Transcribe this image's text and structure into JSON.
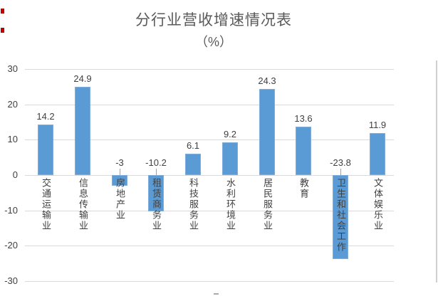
{
  "title": {
    "line1": "分行业营收增速情况表",
    "line2": "（%）"
  },
  "chart_data": {
    "type": "bar",
    "title": "分行业营收增速情况表",
    "subtitle": "（%）",
    "categories": [
      "交通运输业",
      "信息传输业",
      "房地产业",
      "租赁商务业",
      "科技服务业",
      "水利环境业",
      "居民服务业",
      "教育",
      "卫生和社会工作",
      "文体娱乐业"
    ],
    "values": [
      14.2,
      24.9,
      -3,
      -10.2,
      6.1,
      9.2,
      24.3,
      13.6,
      -23.8,
      11.9
    ],
    "value_labels": [
      "14.2",
      "24.9",
      "-3",
      "-10.2",
      "6.1",
      "9.2",
      "24.3",
      "13.6",
      "-23.8",
      "11.9"
    ],
    "ylim": [
      -30,
      30
    ],
    "yticks": [
      30,
      20,
      10,
      0,
      -10,
      -20,
      -30
    ],
    "grid": true,
    "legend": "none",
    "bar_color": "#5b9bd5",
    "bar_border_color": "#7faedc",
    "gridline_color": "#d9d9d9",
    "axis_label_color": "#404040",
    "title_color": "#595959"
  },
  "decorations": {
    "left_margin_marks_color": "#c00000",
    "left_margin_marks_count": 2,
    "right_cell_border_color": "#d0d0d0",
    "bottom_dash_color": "#aaaaaa"
  }
}
